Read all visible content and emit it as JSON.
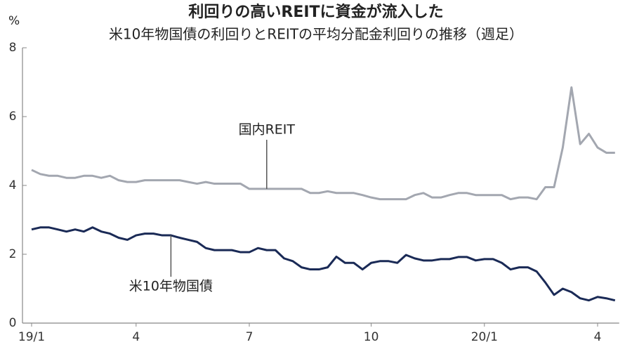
{
  "chart_data": {
    "type": "line",
    "title": "利回りの高いREITに資金が流入した",
    "subtitle": "米10年物国債の利回りとREITの平均分配金利回りの推移（週足）",
    "y_unit": "%",
    "categories": [
      "19/1",
      null,
      null,
      null,
      null,
      null,
      null,
      null,
      null,
      null,
      null,
      null,
      "4",
      null,
      null,
      null,
      null,
      null,
      null,
      null,
      null,
      null,
      null,
      null,
      null,
      "7",
      null,
      null,
      null,
      null,
      null,
      null,
      null,
      null,
      null,
      null,
      null,
      null,
      null,
      "10",
      null,
      null,
      null,
      null,
      null,
      null,
      null,
      null,
      null,
      null,
      null,
      null,
      "20/1",
      null,
      null,
      null,
      null,
      null,
      null,
      null,
      null,
      null,
      null,
      null,
      null,
      "4",
      null,
      null
    ],
    "series": [
      {
        "name": "国内REIT",
        "color": "#a3a7b0",
        "values": [
          4.45,
          4.33,
          4.28,
          4.28,
          4.22,
          4.22,
          4.28,
          4.28,
          4.22,
          4.28,
          4.15,
          4.1,
          4.1,
          4.15,
          4.15,
          4.15,
          4.15,
          4.15,
          4.1,
          4.05,
          4.1,
          4.05,
          4.05,
          4.05,
          4.05,
          3.9,
          3.9,
          3.9,
          3.9,
          3.9,
          3.9,
          3.9,
          3.78,
          3.78,
          3.83,
          3.78,
          3.78,
          3.78,
          3.72,
          3.65,
          3.6,
          3.6,
          3.6,
          3.6,
          3.72,
          3.78,
          3.65,
          3.65,
          3.72,
          3.78,
          3.78,
          3.72,
          3.72,
          3.72,
          3.72,
          3.6,
          3.65,
          3.65,
          3.6,
          3.95,
          3.95,
          5.1,
          6.85,
          5.2,
          5.5,
          5.1,
          4.95,
          4.95
        ]
      },
      {
        "name": "米10年物国債",
        "color": "#1a2a56",
        "values": [
          2.72,
          2.78,
          2.78,
          2.72,
          2.66,
          2.72,
          2.66,
          2.78,
          2.66,
          2.6,
          2.48,
          2.42,
          2.55,
          2.6,
          2.6,
          2.55,
          2.55,
          2.48,
          2.42,
          2.36,
          2.18,
          2.12,
          2.12,
          2.12,
          2.06,
          2.06,
          2.18,
          2.12,
          2.12,
          1.88,
          1.8,
          1.62,
          1.56,
          1.56,
          1.62,
          1.93,
          1.75,
          1.75,
          1.56,
          1.75,
          1.8,
          1.8,
          1.75,
          1.98,
          1.88,
          1.82,
          1.82,
          1.86,
          1.86,
          1.92,
          1.92,
          1.82,
          1.86,
          1.86,
          1.75,
          1.56,
          1.62,
          1.62,
          1.5,
          1.18,
          0.82,
          1.0,
          0.9,
          0.72,
          0.66,
          0.76,
          0.72,
          0.66
        ]
      }
    ],
    "ylim": [
      0,
      8
    ],
    "yticks": [
      0,
      2,
      4,
      6,
      8
    ]
  }
}
